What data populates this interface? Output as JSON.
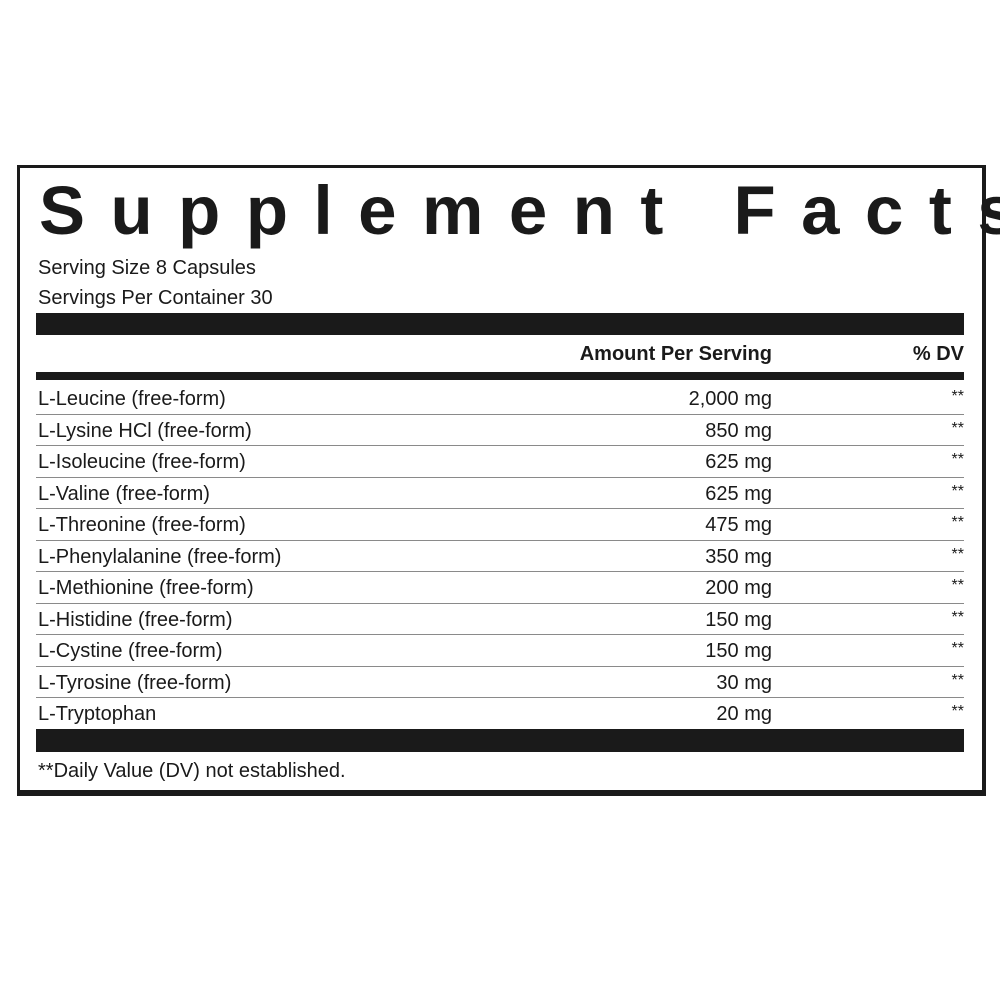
{
  "title": "Supplement Facts",
  "serving_size": "Serving Size 8 Capsules",
  "servings_per_container": "Servings Per Container 30",
  "header": {
    "amount": "Amount Per Serving",
    "dv": "% DV"
  },
  "rows": [
    {
      "name": "L-Leucine (free-form)",
      "amount": "2,000 mg",
      "dv": "**"
    },
    {
      "name": "L-Lysine HCl (free-form)",
      "amount": "850 mg",
      "dv": "**"
    },
    {
      "name": "L-Isoleucine (free-form)",
      "amount": "625 mg",
      "dv": "**"
    },
    {
      "name": "L-Valine (free-form)",
      "amount": "625 mg",
      "dv": "**"
    },
    {
      "name": "L-Threonine (free-form)",
      "amount": "475 mg",
      "dv": "**"
    },
    {
      "name": "L-Phenylalanine (free-form)",
      "amount": "350 mg",
      "dv": "**"
    },
    {
      "name": "L-Methionine (free-form)",
      "amount": "200 mg",
      "dv": "**"
    },
    {
      "name": "L-Histidine (free-form)",
      "amount": "150 mg",
      "dv": "**"
    },
    {
      "name": "L-Cystine (free-form)",
      "amount": "150 mg",
      "dv": "**"
    },
    {
      "name": "L-Tyrosine (free-form)",
      "amount": "30 mg",
      "dv": "**"
    },
    {
      "name": "L-Tryptophan",
      "amount": "20 mg",
      "dv": "**"
    }
  ],
  "footnote": "**Daily Value (DV) not established."
}
